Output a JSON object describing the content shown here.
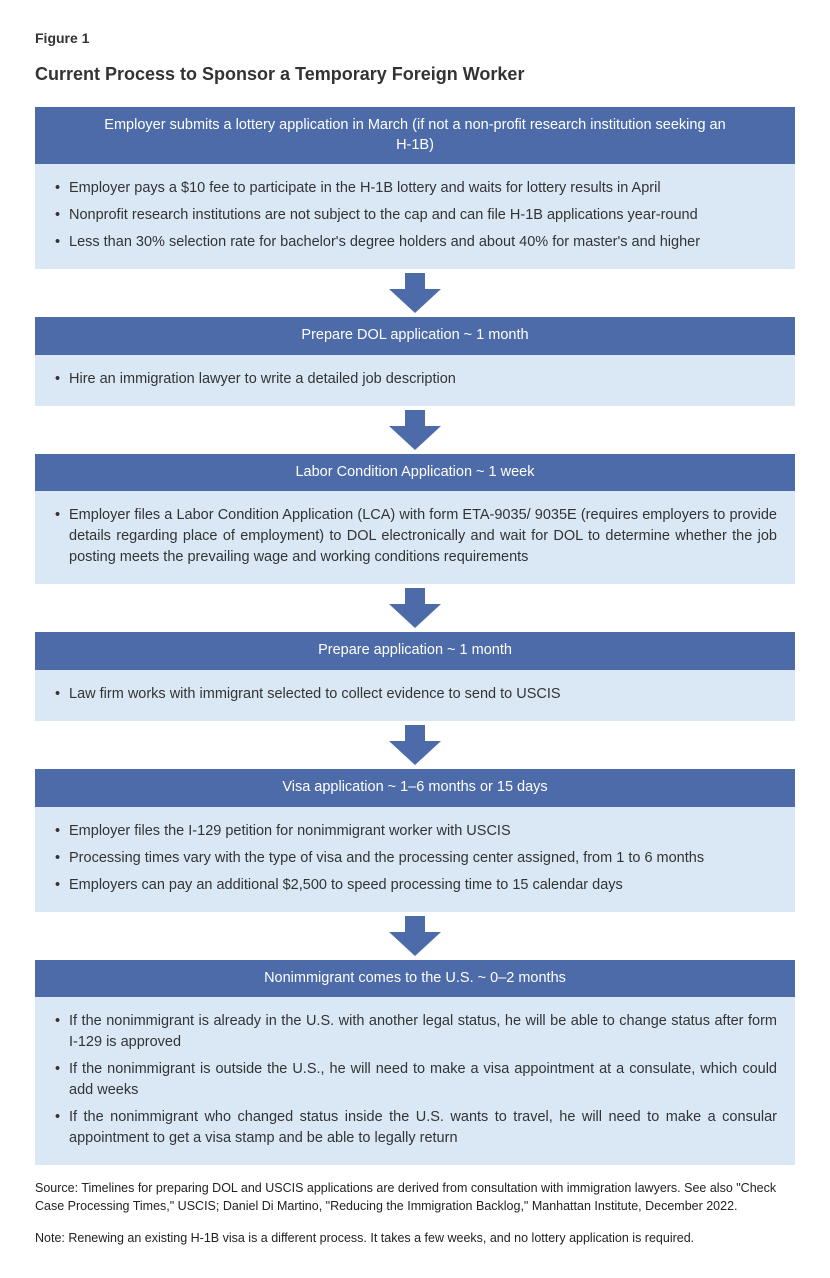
{
  "figure_label": "Figure 1",
  "figure_title": "Current Process to Sponsor a Temporary Foreign Worker",
  "colors": {
    "header_bg": "#4d6ba8",
    "header_text": "#ffffff",
    "body_bg": "#dae8f5",
    "arrow_fill": "#4d6ba8",
    "text": "#333333"
  },
  "arrow": {
    "width": 52,
    "height": 40,
    "fill": "#4d6ba8"
  },
  "steps": [
    {
      "header": "Employer submits a lottery application in March (if not a non-profit research institution seeking an H-1B)",
      "bullets": [
        "Employer pays a $10 fee to participate in the H-1B lottery and waits for lottery results in April",
        "Nonprofit research institutions are not subject to the cap and can file H-1B applications year-round",
        "Less than 30% selection rate for bachelor's degree holders and about 40% for master's and higher"
      ]
    },
    {
      "header": "Prepare DOL application ~ 1 month",
      "bullets": [
        "Hire an immigration lawyer to write a detailed job description"
      ]
    },
    {
      "header": "Labor Condition Application ~ 1 week",
      "bullets": [
        "Employer files a Labor Condition Application (LCA) with form ETA-9035/ 9035E (requires employers to provide details regarding place of employment) to DOL electronically and wait for DOL to determine whether the job posting meets the prevailing wage and working conditions requirements"
      ]
    },
    {
      "header": "Prepare application ~ 1 month",
      "bullets": [
        "Law firm works with immigrant selected to collect evidence to send to USCIS"
      ]
    },
    {
      "header": "Visa application ~ 1–6 months or 15 days",
      "bullets": [
        "Employer files the I-129 petition for nonimmigrant worker with USCIS",
        "Processing times vary with the type of visa and the processing center assigned, from 1 to 6 months",
        "Employers can pay an additional $2,500 to speed processing time to 15 calendar days"
      ]
    },
    {
      "header": "Nonimmigrant comes to the U.S. ~ 0–2 months",
      "bullets": [
        "If the nonimmigrant is already in the U.S. with another legal status, he will be able to change status after form I-129 is approved",
        "If the nonimmigrant is outside the U.S., he will need to make a visa appointment at a consulate, which could add weeks",
        "If the nonimmigrant who changed status inside the U.S. wants to travel, he will need to make a consular appointment to get a visa stamp and be able to legally return"
      ]
    }
  ],
  "source_text": "Source: Timelines for preparing DOL and USCIS applications are derived from consultation with immigration lawyers. See also \"Check Case Processing Times,\" USCIS; Daniel Di Martino, \"Reducing the Immigration Backlog,\" Manhattan Institute, December 2022.",
  "note_text": "Note: Renewing an existing H-1B visa is a different process. It takes a few weeks, and no lottery application is required."
}
